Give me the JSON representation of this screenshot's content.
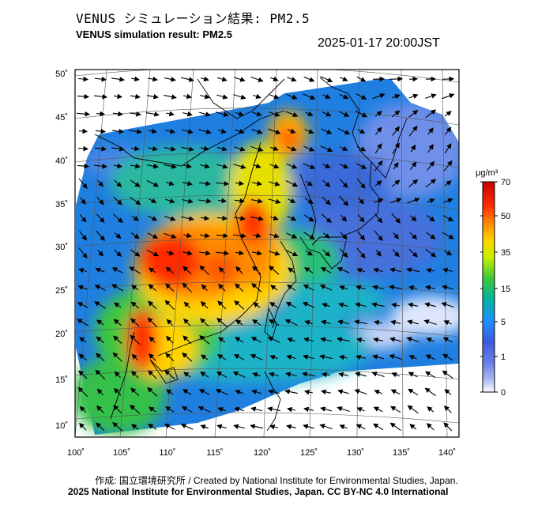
{
  "header": {
    "title_ja": "VENUS シミュレーション結果: PM2.5",
    "title_en": "VENUS simulation result: PM2.5",
    "timestamp": "2025-01-17 20:00JST"
  },
  "map": {
    "lat_ticks": [
      "50˚",
      "45˚",
      "40˚",
      "35˚",
      "30˚",
      "25˚",
      "20˚",
      "15˚",
      "10˚"
    ],
    "lon_ticks": [
      "100˚",
      "105˚",
      "110˚",
      "115˚",
      "120˚",
      "125˚",
      "130˚",
      "135˚",
      "140˚"
    ],
    "colors": {
      "land_outline": "#000000",
      "missing": "#ffffff"
    }
  },
  "colorbar": {
    "unit": "μg/m³",
    "labels": [
      "70",
      "50",
      "35",
      "15",
      "5",
      "1",
      "0"
    ],
    "gradient": [
      "#c80000",
      "#ff3000",
      "#ff8c00",
      "#ffd400",
      "#c8ee00",
      "#3cc83c",
      "#00b4a0",
      "#1e90ff",
      "#3c5adc",
      "#aab8f0",
      "#ffffff"
    ]
  },
  "footer": {
    "credit": "作成: 国立環境研究所 / Created by National Institute for Environmental Studies, Japan.",
    "copyright": "2025 National Institute for Environmental Studies, Japan. CC BY-NC 4.0 International"
  }
}
